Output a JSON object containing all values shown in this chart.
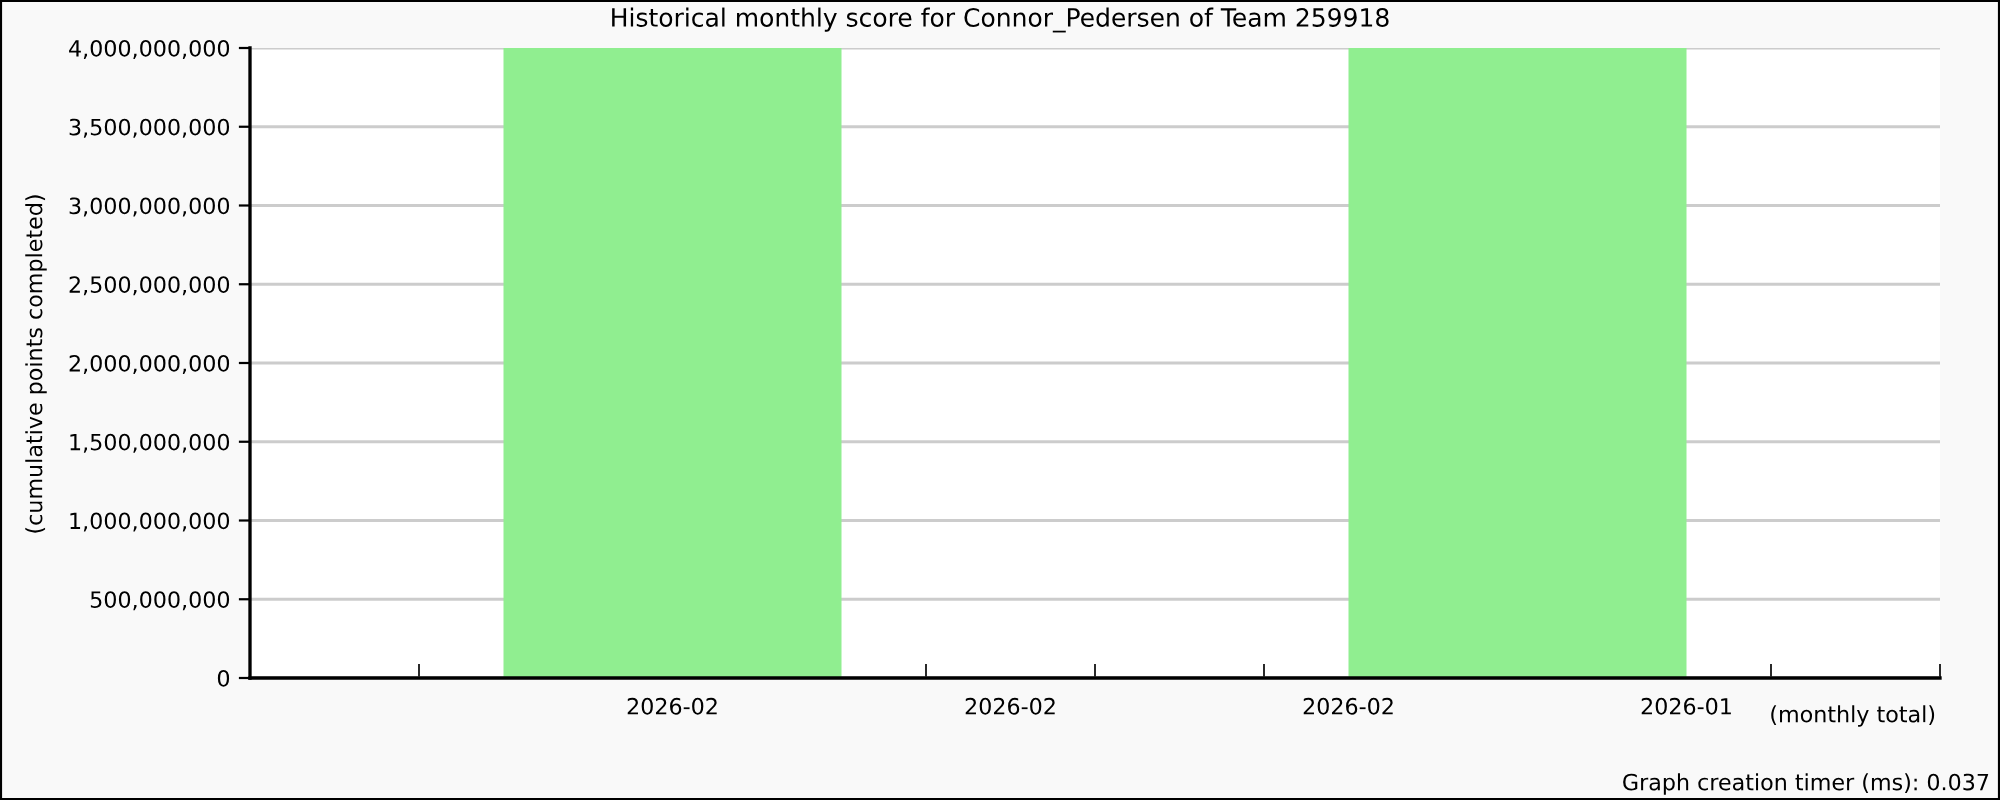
{
  "chart_data": {
    "type": "bar",
    "title": "Historical monthly score for Connor_Pedersen of Team 259918",
    "xlabel": "(monthly total)",
    "ylabel": "(cumulative points completed)",
    "annotations": [
      "Graph creation timer (ms): 0.037"
    ],
    "categories": [
      null,
      null,
      "2026-02",
      null,
      "2026-02",
      null,
      "2026-02",
      null,
      "2026-01",
      null
    ],
    "values": [
      null,
      null,
      4000000000,
      null,
      null,
      null,
      null,
      4000000000,
      null,
      null
    ],
    "color": "#90ee90",
    "ylim": [
      0,
      4000000000
    ],
    "yticks": [
      0,
      {
        "value": 500000000,
        "label": "500,000,000"
      },
      {
        "value": 1000000000,
        "label": "1,000,000,000"
      },
      {
        "value": 1500000000,
        "label": "1,500,000,000"
      },
      {
        "value": 2000000000,
        "label": "2,000,000,000"
      },
      {
        "value": 2500000000,
        "label": "2,500,000,000"
      },
      {
        "value": 3000000000,
        "label": "3,000,000,000"
      },
      {
        "value": 3500000000,
        "label": "3,500,000,000"
      },
      {
        "value": 4000000000,
        "label": "4,000,000,000"
      }
    ],
    "grid": "y"
  }
}
